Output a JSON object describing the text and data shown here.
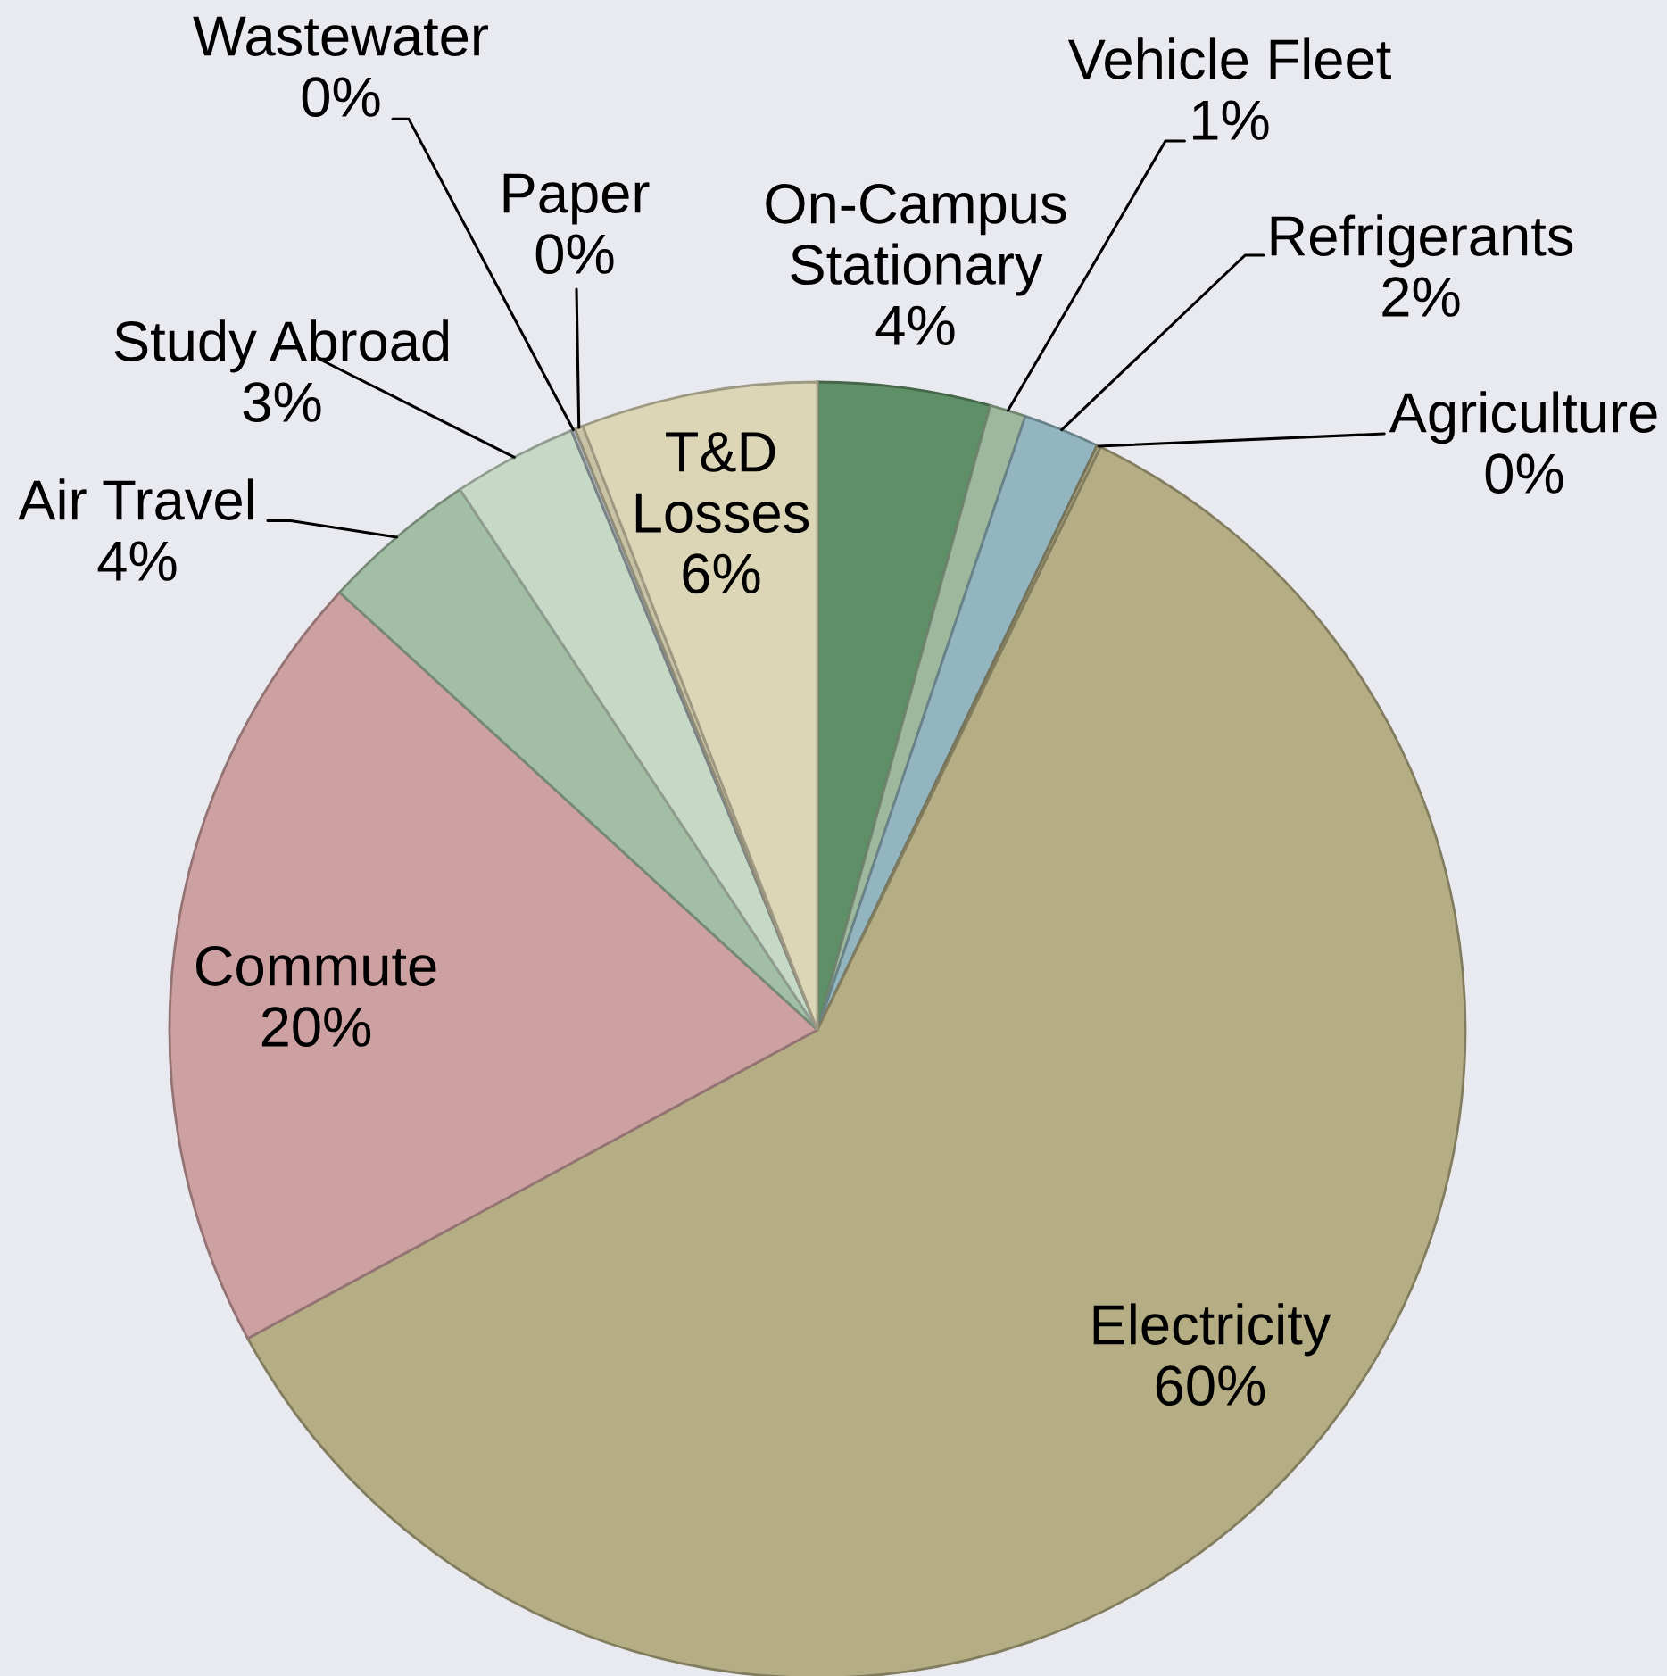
{
  "chart_data": {
    "type": "pie",
    "categories": [
      "On-Campus Stationary",
      "Vehicle Fleet",
      "Refrigerants",
      "Agriculture",
      "Electricity",
      "Commute",
      "Air Travel",
      "Study Abroad",
      "Wastewater",
      "Paper",
      "T&D Losses"
    ],
    "values": [
      4.3,
      0.9,
      1.9,
      0.1,
      59.9,
      19.7,
      3.9,
      3.1,
      0.1,
      0.2,
      5.9
    ],
    "value_labels": [
      "4%",
      "1%",
      "2%",
      "0%",
      "60%",
      "20%",
      "4%",
      "3%",
      "0%",
      "0%",
      "6%"
    ],
    "colors": [
      "#5f8f66",
      "#9db89c",
      "#92b5c0",
      "#a4a07c",
      "#b5ae84",
      "#cda0a1",
      "#a2bea4",
      "#c6d9c6",
      "#a9b5b9",
      "#c9c3a6",
      "#dcd5b6"
    ]
  }
}
